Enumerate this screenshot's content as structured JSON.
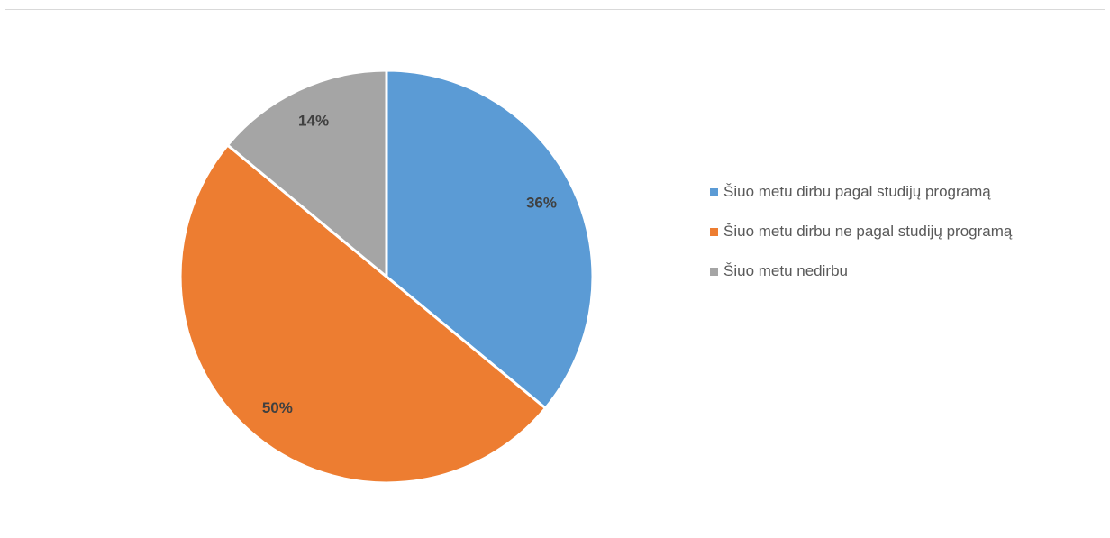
{
  "chart_data": {
    "type": "pie",
    "categories": [
      "Šiuo metu dirbu pagal studijų programą",
      "Šiuo metu dirbu ne pagal studijų programą",
      "Šiuo metu nedirbu"
    ],
    "values": [
      36,
      50,
      14
    ],
    "value_labels": [
      "36%",
      "50%",
      "14%"
    ],
    "colors": [
      "#5b9bd5",
      "#ed7d31",
      "#a5a5a5"
    ],
    "legend": "right"
  }
}
